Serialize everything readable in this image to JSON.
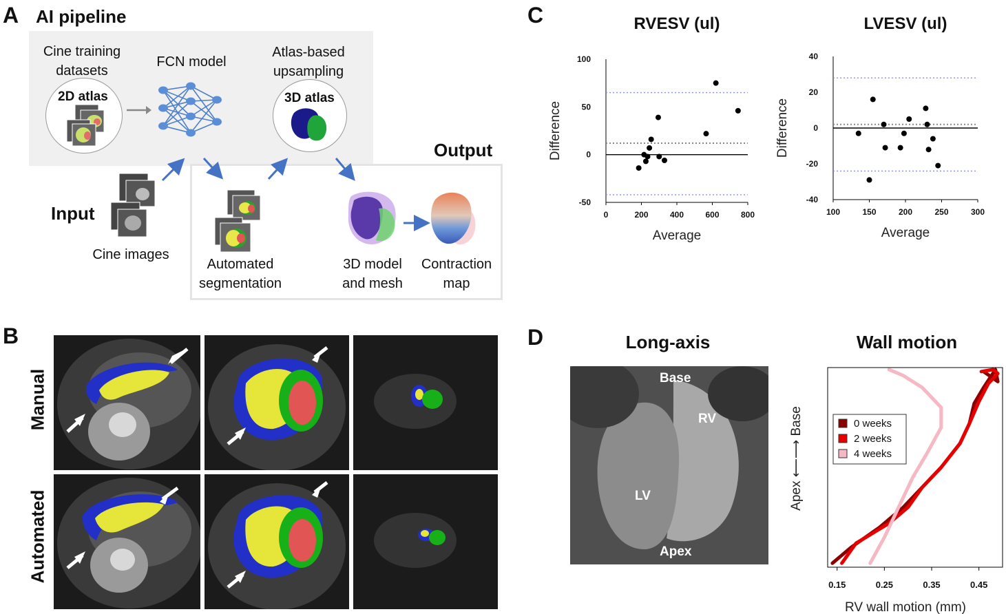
{
  "panelA": {
    "letter": "A",
    "title": "AI pipeline",
    "cine_training": "Cine training datasets",
    "atlas2d": "2D atlas",
    "fcn": "FCN model",
    "atlas_upsampling": "Atlas-based upsampling",
    "atlas3d": "3D atlas",
    "output": "Output",
    "input": "Input",
    "cine_images": "Cine images",
    "auto_seg": "Automated segmentation",
    "model_mesh": "3D model and mesh",
    "contraction": "Contraction map"
  },
  "panelB": {
    "letter": "B",
    "row1": "Manual",
    "row2": "Automated"
  },
  "panelC": {
    "letter": "C"
  },
  "panelD": {
    "letter": "D",
    "long_axis": "Long-axis",
    "wall_motion": "Wall motion",
    "base": "Base",
    "rv": "RV",
    "lv": "LV",
    "apex": "Apex"
  },
  "chart_data": [
    {
      "type": "scatter",
      "title": "RVESV (ul)",
      "xlabel": "Average",
      "ylabel": "Difference",
      "xlim": [
        0,
        800
      ],
      "ylim": [
        -50,
        100
      ],
      "xticks": [
        0,
        200,
        400,
        600,
        800
      ],
      "yticks": [
        100,
        50,
        0,
        -50
      ],
      "mean": 12,
      "upper_loa": 65,
      "lower_loa": -42,
      "points": [
        [
          185,
          -14
        ],
        [
          215,
          0
        ],
        [
          225,
          -7
        ],
        [
          235,
          -2
        ],
        [
          245,
          7
        ],
        [
          255,
          16
        ],
        [
          295,
          39
        ],
        [
          300,
          -2
        ],
        [
          330,
          -6
        ],
        [
          565,
          22
        ],
        [
          620,
          75
        ],
        [
          745,
          46
        ]
      ]
    },
    {
      "type": "scatter",
      "title": "LVESV (ul)",
      "xlabel": "Average",
      "ylabel": "Difference",
      "xlim": [
        100,
        300
      ],
      "ylim": [
        -40,
        40
      ],
      "xticks": [
        100,
        150,
        200,
        250,
        300
      ],
      "yticks": [
        40,
        20,
        0,
        -20,
        -40
      ],
      "mean": 2,
      "upper_loa": 28,
      "lower_loa": -24,
      "points": [
        [
          135,
          -3
        ],
        [
          150,
          -29
        ],
        [
          155,
          16
        ],
        [
          170,
          2
        ],
        [
          172,
          -11
        ],
        [
          193,
          -11
        ],
        [
          198,
          -3
        ],
        [
          205,
          5
        ],
        [
          228,
          11
        ],
        [
          230,
          2
        ],
        [
          232,
          -12
        ],
        [
          238,
          -6
        ],
        [
          245,
          -21
        ]
      ]
    },
    {
      "type": "line",
      "xlabel": "RV wall motion (mm)",
      "ylabel": "Apex ⟵⟶ Base",
      "xticks": [
        "0.15",
        "0.25",
        "0.35",
        "0.45"
      ],
      "xlim": [
        0.13,
        0.5
      ],
      "series": [
        {
          "name": "0 weeks",
          "color": "#8b0000",
          "values": [
            [
              0.14,
              0.02
            ],
            [
              0.18,
              0.1
            ],
            [
              0.24,
              0.2
            ],
            [
              0.29,
              0.3
            ],
            [
              0.33,
              0.4
            ],
            [
              0.37,
              0.5
            ],
            [
              0.41,
              0.62
            ],
            [
              0.43,
              0.72
            ],
            [
              0.44,
              0.82
            ],
            [
              0.46,
              0.9
            ],
            [
              0.485,
              0.99
            ],
            [
              0.49,
              0.93
            ],
            [
              0.46,
              0.98
            ]
          ]
        },
        {
          "name": "2 weeks",
          "color": "#e60000",
          "values": [
            [
              0.16,
              0.02
            ],
            [
              0.19,
              0.12
            ],
            [
              0.26,
              0.22
            ],
            [
              0.3,
              0.3
            ],
            [
              0.33,
              0.4
            ],
            [
              0.37,
              0.5
            ],
            [
              0.41,
              0.62
            ],
            [
              0.43,
              0.72
            ],
            [
              0.45,
              0.83
            ],
            [
              0.47,
              0.92
            ],
            [
              0.49,
              0.97
            ],
            [
              0.48,
              0.99
            ],
            [
              0.455,
              0.98
            ]
          ]
        },
        {
          "name": "4 weeks",
          "color": "#f5b8c4",
          "values": [
            [
              0.22,
              0.02
            ],
            [
              0.25,
              0.15
            ],
            [
              0.28,
              0.3
            ],
            [
              0.31,
              0.45
            ],
            [
              0.34,
              0.57
            ],
            [
              0.37,
              0.7
            ],
            [
              0.37,
              0.8
            ],
            [
              0.33,
              0.9
            ],
            [
              0.29,
              0.96
            ],
            [
              0.26,
              0.99
            ]
          ]
        }
      ]
    }
  ]
}
